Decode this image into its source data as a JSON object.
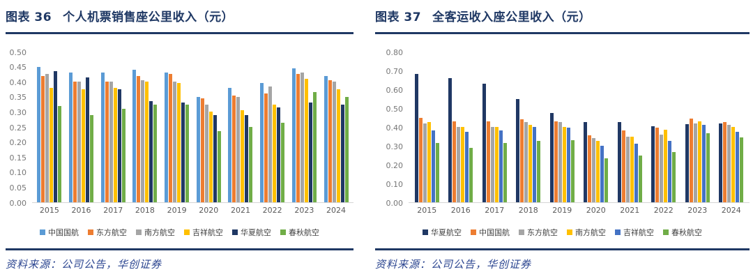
{
  "chart_data": [
    {
      "type": "bar",
      "fig_label": "图表 36",
      "title": "个人机票销售座公里收入（元）",
      "source": "资料来源：公司公告，华创证券",
      "categories": [
        "2015",
        "2016",
        "2017",
        "2018",
        "2019",
        "2020",
        "2021",
        "2022",
        "2023",
        "2024"
      ],
      "ylim": [
        0,
        0.5
      ],
      "yticks": [
        "0.00",
        "0.05",
        "0.10",
        "0.15",
        "0.20",
        "0.25",
        "0.30",
        "0.35",
        "0.40",
        "0.45",
        "0.50"
      ],
      "grid": false,
      "legend_position": "bottom",
      "series": [
        {
          "name": "中国国航",
          "color": "#5B9BD5",
          "values": [
            0.45,
            0.43,
            0.43,
            0.44,
            0.43,
            0.35,
            0.38,
            0.395,
            0.445,
            0.42
          ]
        },
        {
          "name": "东方航空",
          "color": "#ED7D31",
          "values": [
            0.42,
            0.4,
            0.4,
            0.42,
            0.425,
            0.345,
            0.355,
            0.36,
            0.425,
            0.405
          ]
        },
        {
          "name": "南方航空",
          "color": "#A5A5A5",
          "values": [
            0.425,
            0.4,
            0.4,
            0.405,
            0.4,
            0.325,
            0.35,
            0.385,
            0.43,
            0.4
          ]
        },
        {
          "name": "吉祥航空",
          "color": "#FFC000",
          "values": [
            0.38,
            0.375,
            0.38,
            0.4,
            0.395,
            0.3,
            0.305,
            0.325,
            0.41,
            0.375
          ]
        },
        {
          "name": "华夏航空",
          "color": "#203864",
          "values": [
            0.435,
            0.415,
            0.375,
            0.335,
            0.33,
            0.29,
            0.29,
            0.315,
            0.33,
            0.325
          ]
        },
        {
          "name": "春秋航空",
          "color": "#70AD47",
          "values": [
            0.32,
            0.29,
            0.31,
            0.325,
            0.325,
            0.235,
            0.25,
            0.265,
            0.365,
            0.35
          ]
        }
      ]
    },
    {
      "type": "bar",
      "fig_label": "图表 37",
      "title": "全客运收入座公里收入（元）",
      "source": "资料来源：公司公告，华创证券",
      "categories": [
        "2015",
        "2016",
        "2017",
        "2018",
        "2019",
        "2020",
        "2021",
        "2022",
        "2023",
        "2024"
      ],
      "ylim": [
        0,
        0.8
      ],
      "yticks": [
        "0.00",
        "0.10",
        "0.20",
        "0.30",
        "0.40",
        "0.50",
        "0.60",
        "0.70",
        "0.80"
      ],
      "grid": false,
      "legend_position": "bottom",
      "series": [
        {
          "name": "华夏航空",
          "color": "#203864",
          "values": [
            0.68,
            0.66,
            0.63,
            0.55,
            0.475,
            0.425,
            0.425,
            0.405,
            0.415,
            0.42
          ]
        },
        {
          "name": "中国国航",
          "color": "#ED7D31",
          "values": [
            0.45,
            0.43,
            0.43,
            0.44,
            0.43,
            0.355,
            0.38,
            0.395,
            0.445,
            0.425
          ]
        },
        {
          "name": "东方航空",
          "color": "#A5A5A5",
          "values": [
            0.42,
            0.4,
            0.4,
            0.425,
            0.425,
            0.34,
            0.35,
            0.36,
            0.42,
            0.41
          ]
        },
        {
          "name": "南方航空",
          "color": "#FFC000",
          "values": [
            0.425,
            0.4,
            0.4,
            0.41,
            0.4,
            0.325,
            0.35,
            0.385,
            0.43,
            0.4
          ]
        },
        {
          "name": "吉祥航空",
          "color": "#4472C4",
          "values": [
            0.38,
            0.375,
            0.38,
            0.4,
            0.395,
            0.3,
            0.31,
            0.325,
            0.41,
            0.375
          ]
        },
        {
          "name": "春秋航空",
          "color": "#70AD47",
          "values": [
            0.315,
            0.29,
            0.315,
            0.325,
            0.33,
            0.235,
            0.25,
            0.265,
            0.365,
            0.345
          ]
        }
      ]
    }
  ]
}
